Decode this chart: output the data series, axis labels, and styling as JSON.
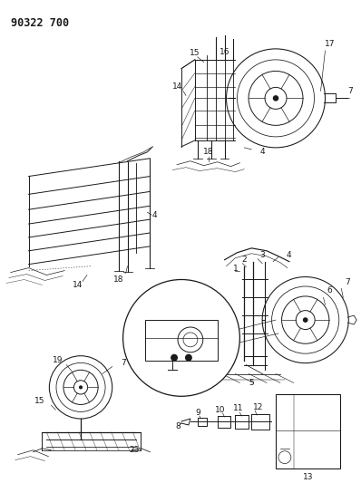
{
  "title": "90322 700",
  "bg_color": "#ffffff",
  "line_color": "#1a1a1a",
  "title_fontsize": 8.5,
  "fig_width": 3.98,
  "fig_height": 5.33,
  "dpi": 100
}
